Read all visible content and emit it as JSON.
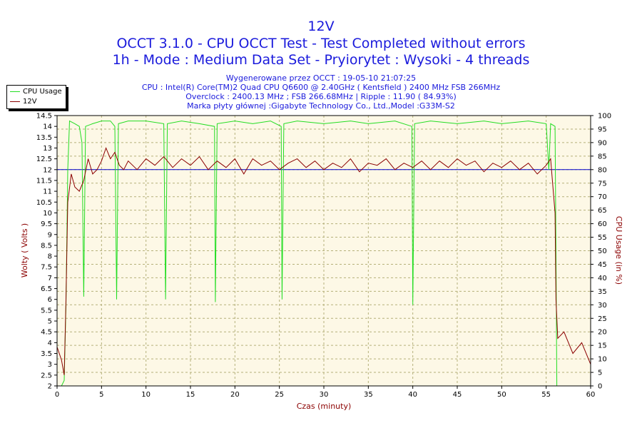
{
  "title": "12V",
  "subtitle1": "OCCT 3.1.0 - CPU OCCT Test - Test Completed without errors",
  "subtitle2": "1h - Mode : Medium Data Set - Pryiorytet : Wysoki - 4 threads",
  "info": [
    "Wygenerowane przez OCCT : 19-05-10 21:07:25",
    "CPU : Intel(R) Core(TM)2 Quad CPU Q6600 @ 2.40GHz ( Kentsfield ) 2400 MHz FSB 266MHz",
    "Overclock : 2400.13 MHz ; FSB 266.68MHz | Ripple : 11.90 ( 84.93%)",
    "Marka płyty głównej :Gigabyte Technology Co., Ltd.,Model :G33M-S2"
  ],
  "colors": {
    "text": "#1a1adc",
    "cpu": "#22dd22",
    "volt": "#8b0000",
    "ref": "#0000cc",
    "plot_bg": "#fdf8e6",
    "grid": "#b5b07a"
  },
  "chart_data": {
    "type": "line",
    "xlabel": "Czas (minuty)",
    "ylabel_left": "Wolty ( Volts )",
    "ylabel_right": "CPU Usage (in %)",
    "xlim": [
      0,
      60
    ],
    "ylim_left": [
      2,
      14.5
    ],
    "ylim_right": [
      0,
      100
    ],
    "x_ticks": [
      0,
      5,
      10,
      15,
      20,
      25,
      30,
      35,
      40,
      45,
      50,
      55,
      60
    ],
    "y_left_ticks": [
      "2",
      "2.5",
      "3",
      "3.5",
      "4",
      "4.5",
      "5",
      "5.5",
      "6",
      "6.5",
      "7",
      "7.5",
      "8",
      "8.5",
      "9",
      "9.5",
      "10",
      "10.5",
      "11",
      "11.5",
      "12",
      "12.5",
      "13",
      "13.5",
      "14",
      "14.5"
    ],
    "y_right_ticks": [
      0,
      5,
      10,
      15,
      20,
      25,
      30,
      35,
      40,
      45,
      50,
      55,
      60,
      65,
      70,
      75,
      80,
      85,
      90,
      95,
      100
    ],
    "reference_line": 12,
    "grid": true,
    "legend_position": "top-left",
    "series": [
      {
        "name": "CPU Usage",
        "axis": "right",
        "color": "#22dd22",
        "points": [
          [
            0,
            0
          ],
          [
            0.5,
            0
          ],
          [
            0.8,
            2
          ],
          [
            1.0,
            30
          ],
          [
            1.2,
            80
          ],
          [
            1.4,
            98
          ],
          [
            2,
            97
          ],
          [
            2.5,
            96
          ],
          [
            2.8,
            90
          ],
          [
            3.0,
            33
          ],
          [
            3.2,
            96
          ],
          [
            4,
            97
          ],
          [
            5,
            98
          ],
          [
            6,
            98
          ],
          [
            6.5,
            96
          ],
          [
            6.7,
            32
          ],
          [
            6.9,
            97
          ],
          [
            8,
            98
          ],
          [
            10,
            98
          ],
          [
            12,
            97
          ],
          [
            12.2,
            32
          ],
          [
            12.4,
            97
          ],
          [
            14,
            98
          ],
          [
            16,
            97
          ],
          [
            17.7,
            96
          ],
          [
            17.8,
            31
          ],
          [
            18.0,
            97
          ],
          [
            20,
            98
          ],
          [
            22,
            97
          ],
          [
            24,
            98
          ],
          [
            25.2,
            96
          ],
          [
            25.3,
            32
          ],
          [
            25.5,
            97
          ],
          [
            27,
            98
          ],
          [
            30,
            97
          ],
          [
            33,
            98
          ],
          [
            35,
            97
          ],
          [
            38,
            98
          ],
          [
            39.9,
            96
          ],
          [
            40.0,
            30
          ],
          [
            40.2,
            97
          ],
          [
            42,
            98
          ],
          [
            45,
            97
          ],
          [
            48,
            98
          ],
          [
            50,
            97
          ],
          [
            53,
            98
          ],
          [
            55,
            97
          ],
          [
            55.3,
            80
          ],
          [
            55.5,
            97
          ],
          [
            56,
            96
          ],
          [
            56.1,
            50
          ],
          [
            56.2,
            0
          ],
          [
            57,
            0
          ],
          [
            60,
            0
          ]
        ]
      },
      {
        "name": "12V",
        "axis": "left",
        "color": "#8b0000",
        "points": [
          [
            0,
            3.8
          ],
          [
            0.5,
            3.2
          ],
          [
            0.8,
            2.5
          ],
          [
            1.0,
            6
          ],
          [
            1.2,
            10.5
          ],
          [
            1.6,
            11.8
          ],
          [
            2,
            11.2
          ],
          [
            2.5,
            11
          ],
          [
            3,
            11.5
          ],
          [
            3.5,
            12.5
          ],
          [
            4,
            11.8
          ],
          [
            4.5,
            12
          ],
          [
            5,
            12.4
          ],
          [
            5.5,
            13
          ],
          [
            6,
            12.5
          ],
          [
            6.5,
            12.8
          ],
          [
            7,
            12.2
          ],
          [
            7.5,
            12
          ],
          [
            8,
            12.4
          ],
          [
            9,
            12
          ],
          [
            10,
            12.5
          ],
          [
            11,
            12.2
          ],
          [
            12,
            12.6
          ],
          [
            13,
            12.1
          ],
          [
            14,
            12.5
          ],
          [
            15,
            12.2
          ],
          [
            16,
            12.6
          ],
          [
            17,
            12
          ],
          [
            18,
            12.4
          ],
          [
            19,
            12.1
          ],
          [
            20,
            12.5
          ],
          [
            21,
            11.8
          ],
          [
            22,
            12.5
          ],
          [
            23,
            12.2
          ],
          [
            24,
            12.4
          ],
          [
            25,
            12
          ],
          [
            26,
            12.3
          ],
          [
            27,
            12.5
          ],
          [
            28,
            12.1
          ],
          [
            29,
            12.4
          ],
          [
            30,
            12
          ],
          [
            31,
            12.3
          ],
          [
            32,
            12.1
          ],
          [
            33,
            12.5
          ],
          [
            34,
            11.9
          ],
          [
            35,
            12.3
          ],
          [
            36,
            12.2
          ],
          [
            37,
            12.5
          ],
          [
            38,
            12
          ],
          [
            39,
            12.3
          ],
          [
            40,
            12.1
          ],
          [
            41,
            12.4
          ],
          [
            42,
            12
          ],
          [
            43,
            12.4
          ],
          [
            44,
            12.1
          ],
          [
            45,
            12.5
          ],
          [
            46,
            12.2
          ],
          [
            47,
            12.4
          ],
          [
            48,
            11.9
          ],
          [
            49,
            12.3
          ],
          [
            50,
            12.1
          ],
          [
            51,
            12.4
          ],
          [
            52,
            12
          ],
          [
            53,
            12.3
          ],
          [
            54,
            11.8
          ],
          [
            55,
            12.2
          ],
          [
            55.5,
            12.5
          ],
          [
            56.0,
            10
          ],
          [
            56.1,
            6
          ],
          [
            56.3,
            4.2
          ],
          [
            57,
            4.5
          ],
          [
            58,
            3.5
          ],
          [
            59,
            4
          ],
          [
            60,
            3
          ]
        ]
      }
    ]
  }
}
